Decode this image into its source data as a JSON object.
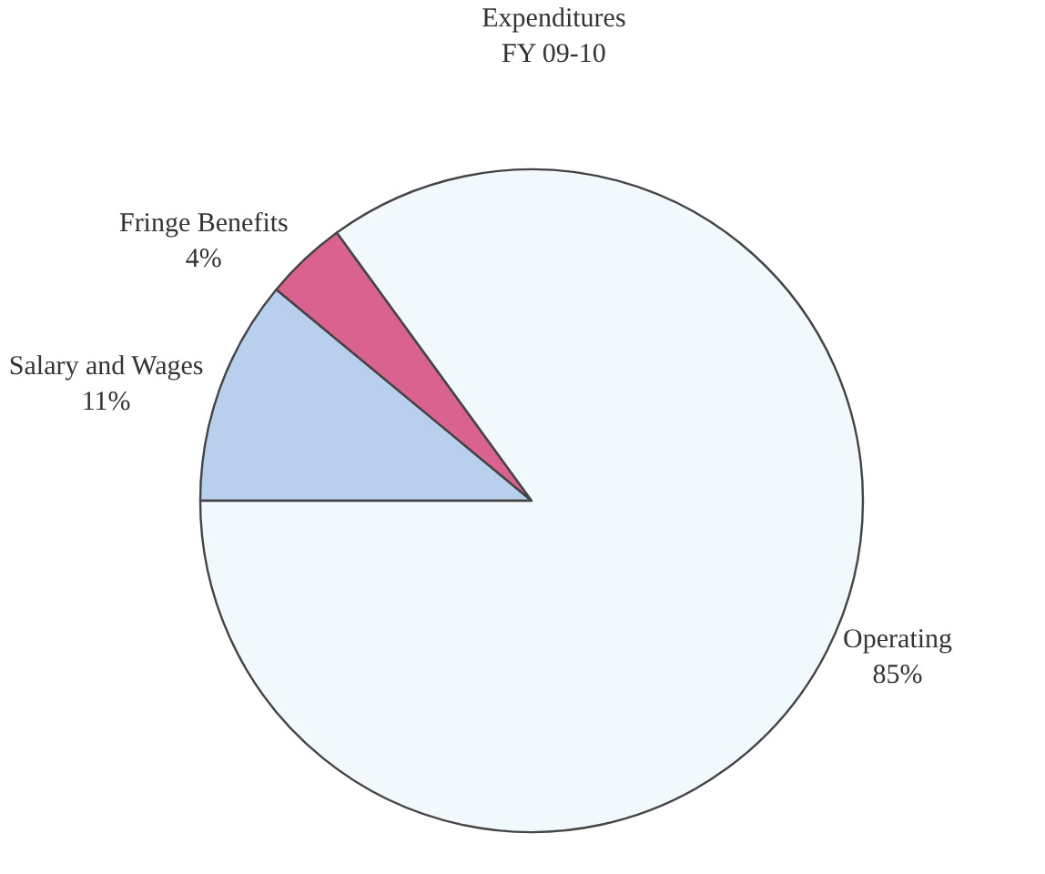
{
  "chart_data": {
    "type": "pie",
    "title": "Expenditures",
    "subtitle": "FY 09-10",
    "categories": [
      "Salary and Wages",
      "Fringe Benefits",
      "Operating"
    ],
    "values": [
      11,
      4,
      85
    ],
    "value_labels": [
      "11%",
      "4%",
      "85%"
    ],
    "colors": [
      "#b9cfee",
      "#d9628f",
      "#f2f9fd"
    ],
    "legend": false
  }
}
